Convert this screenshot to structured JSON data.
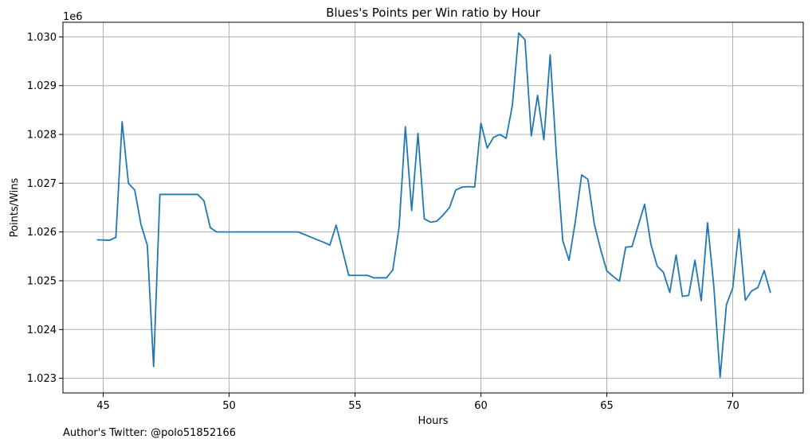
{
  "chart_data": {
    "type": "line",
    "title": "Blues's Points per Win ratio by Hour",
    "xlabel": "Hours",
    "ylabel": "Points/Wins",
    "y_offset_text": "1e6",
    "xlim": [
      43.4,
      72.8
    ],
    "ylim": [
      1022.7,
      1030.3
    ],
    "x_ticks": [
      45,
      50,
      55,
      60,
      65,
      70
    ],
    "y_ticks": [
      1.023,
      1.024,
      1.025,
      1.026,
      1.027,
      1.028,
      1.029,
      1.03
    ],
    "y_tick_labels": [
      "1.023",
      "1.024",
      "1.025",
      "1.026",
      "1.027",
      "1.028",
      "1.029",
      "1.030"
    ],
    "grid": true,
    "color": "#1f77b4",
    "series": [
      {
        "x": [
          44.75,
          45.25,
          45.5,
          45.75,
          46.0,
          46.25,
          46.5,
          46.75,
          47.0,
          47.25,
          47.5,
          48.0,
          48.5,
          48.75,
          49.0,
          49.25,
          49.5,
          50.0,
          51.0,
          52.0,
          52.75,
          53.5,
          53.75,
          54.0,
          54.25,
          54.5,
          54.75,
          55.0,
          55.5,
          55.75,
          56.0,
          56.25,
          56.5,
          56.75,
          57.0,
          57.25,
          57.5,
          57.75,
          58.0,
          58.25,
          58.5,
          58.75,
          59.0,
          59.25,
          59.5,
          59.75,
          60.0,
          60.25,
          60.5,
          60.75,
          61.0,
          61.25,
          61.5,
          61.75,
          62.0,
          62.25,
          62.5,
          62.75,
          63.0,
          63.25,
          63.5,
          63.75,
          64.0,
          64.25,
          64.5,
          64.75,
          65.0,
          65.25,
          65.5,
          65.75,
          66.0,
          66.25,
          66.5,
          66.75,
          67.0,
          67.25,
          67.5,
          67.75,
          68.0,
          68.25,
          68.5,
          68.75,
          69.0,
          69.25,
          69.5,
          69.75,
          70.0,
          70.25,
          70.5,
          70.75,
          71.0,
          71.25,
          71.5
        ],
        "y": [
          1025.84,
          1025.83,
          1025.89,
          1028.26,
          1027.0,
          1026.86,
          1026.15,
          1025.73,
          1023.24,
          1026.77,
          1026.77,
          1026.77,
          1026.77,
          1026.77,
          1026.64,
          1026.09,
          1026.0,
          1026.0,
          1026.0,
          1026.0,
          1026.0,
          1025.84,
          1025.79,
          1025.73,
          1026.14,
          1025.63,
          1025.11,
          1025.11,
          1025.11,
          1025.06,
          1025.06,
          1025.06,
          1025.22,
          1026.1,
          1028.16,
          1026.44,
          1028.02,
          1026.27,
          1026.2,
          1026.22,
          1026.35,
          1026.5,
          1026.86,
          1026.92,
          1026.93,
          1026.92,
          1028.23,
          1027.72,
          1027.94,
          1028.0,
          1027.92,
          1028.6,
          1030.08,
          1029.94,
          1027.97,
          1028.8,
          1027.89,
          1029.63,
          1027.56,
          1025.82,
          1025.42,
          1026.22,
          1027.17,
          1027.08,
          1026.17,
          1025.65,
          1025.2,
          1025.09,
          1024.99,
          1025.69,
          1025.7,
          1026.14,
          1026.57,
          1025.75,
          1025.3,
          1025.17,
          1024.76,
          1025.53,
          1024.68,
          1024.7,
          1025.42,
          1024.59,
          1026.19,
          1024.88,
          1023.02,
          1024.51,
          1024.85,
          1026.06,
          1024.6,
          1024.79,
          1024.86,
          1025.21,
          1024.75
        ]
      }
    ]
  },
  "footer": {
    "text": "Author's Twitter: @polo51852166"
  }
}
